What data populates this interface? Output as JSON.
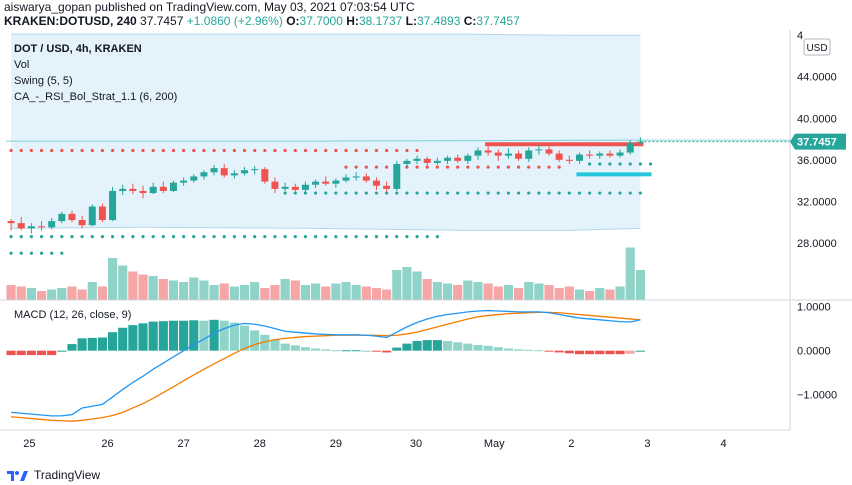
{
  "header": {
    "line1": "aiswarya_gopan published on TradingView.com, May 03, 2021 07:03:54 UTC",
    "symbol": "KRAKEN:DOTUSD, 240",
    "last": "37.7457",
    "change": "+1.0860 (+2.96%)",
    "open_label": "O:",
    "open": "37.7000",
    "high_label": "H:",
    "high": "38.1737",
    "low_label": "L:",
    "low": "37.4893",
    "close_label": "C:",
    "close": "37.7457"
  },
  "legend": {
    "title": "DOT / USD, 4h, KRAKEN",
    "vol": "Vol",
    "swing": "Swing (5, 5)",
    "strategy": "CA_-_RSI_Bol_Strat_1.1 (6, 200)",
    "macd": "MACD (12, 26, close, 9)"
  },
  "footer": {
    "brand": "TradingView"
  },
  "colors": {
    "up": "#26a69a",
    "down": "#ef5350",
    "up_light": "#8fd3c9",
    "down_light": "#f6a6a6",
    "macd_line": "#2196f3",
    "signal_line": "#f57c00",
    "band_fill": "#e3f2fb",
    "swing_high": "#ef5350",
    "swing_low": "#26a69a",
    "price_label": "#26a69a"
  },
  "chart_data": {
    "type": "candlestick",
    "currency_badge": "USD",
    "x_ticks": [
      "25",
      "26",
      "27",
      "28",
      "29",
      "30",
      "May",
      "2",
      "3",
      "4"
    ],
    "y_ticks": [
      "28.0000",
      "32.0000",
      "36.0000",
      "40.0000",
      "44.0000",
      "4"
    ],
    "price_label": "37.7457",
    "macd_ticks": [
      "1.0000",
      "0.0000",
      "−1.0000"
    ],
    "ylim": [
      22.5,
      48.5
    ],
    "macd_ylim": [
      -1.8,
      1.15
    ],
    "candles": [
      {
        "o": 30.1,
        "h": 30.3,
        "l": 29.2,
        "c": 29.9
      },
      {
        "o": 29.9,
        "h": 30.5,
        "l": 29.2,
        "c": 29.4
      },
      {
        "o": 29.4,
        "h": 29.9,
        "l": 28.9,
        "c": 29.6
      },
      {
        "o": 29.6,
        "h": 30.1,
        "l": 29.2,
        "c": 29.5
      },
      {
        "o": 29.5,
        "h": 30.4,
        "l": 29.3,
        "c": 30.1
      },
      {
        "o": 30.1,
        "h": 31.0,
        "l": 29.9,
        "c": 30.8
      },
      {
        "o": 30.8,
        "h": 31.1,
        "l": 30.0,
        "c": 30.2
      },
      {
        "o": 30.2,
        "h": 30.6,
        "l": 29.4,
        "c": 29.7
      },
      {
        "o": 29.7,
        "h": 31.7,
        "l": 29.6,
        "c": 31.5
      },
      {
        "o": 31.5,
        "h": 31.8,
        "l": 30.0,
        "c": 30.2
      },
      {
        "o": 30.2,
        "h": 33.4,
        "l": 30.1,
        "c": 33.0
      },
      {
        "o": 33.0,
        "h": 33.6,
        "l": 32.6,
        "c": 33.2
      },
      {
        "o": 33.2,
        "h": 33.7,
        "l": 32.7,
        "c": 33.0
      },
      {
        "o": 33.0,
        "h": 33.5,
        "l": 32.3,
        "c": 32.8
      },
      {
        "o": 32.8,
        "h": 33.8,
        "l": 32.7,
        "c": 33.4
      },
      {
        "o": 33.4,
        "h": 33.9,
        "l": 32.8,
        "c": 33.0
      },
      {
        "o": 33.0,
        "h": 34.0,
        "l": 32.9,
        "c": 33.8
      },
      {
        "o": 33.8,
        "h": 34.3,
        "l": 33.5,
        "c": 34.0
      },
      {
        "o": 34.0,
        "h": 34.6,
        "l": 33.8,
        "c": 34.4
      },
      {
        "o": 34.4,
        "h": 35.0,
        "l": 34.1,
        "c": 34.8
      },
      {
        "o": 34.8,
        "h": 35.5,
        "l": 34.5,
        "c": 35.2
      },
      {
        "o": 35.2,
        "h": 35.6,
        "l": 34.3,
        "c": 34.5
      },
      {
        "o": 34.5,
        "h": 35.0,
        "l": 34.2,
        "c": 34.7
      },
      {
        "o": 34.7,
        "h": 35.3,
        "l": 34.5,
        "c": 35.0
      },
      {
        "o": 35.0,
        "h": 35.4,
        "l": 34.6,
        "c": 35.1
      },
      {
        "o": 35.1,
        "h": 35.3,
        "l": 33.7,
        "c": 33.9
      },
      {
        "o": 33.9,
        "h": 34.3,
        "l": 32.8,
        "c": 33.2
      },
      {
        "o": 33.2,
        "h": 33.8,
        "l": 33.0,
        "c": 33.4
      },
      {
        "o": 33.4,
        "h": 33.7,
        "l": 32.9,
        "c": 33.1
      },
      {
        "o": 33.1,
        "h": 33.9,
        "l": 32.7,
        "c": 33.6
      },
      {
        "o": 33.6,
        "h": 34.1,
        "l": 33.3,
        "c": 33.9
      },
      {
        "o": 33.9,
        "h": 34.4,
        "l": 33.5,
        "c": 33.7
      },
      {
        "o": 33.7,
        "h": 34.2,
        "l": 33.3,
        "c": 34.0
      },
      {
        "o": 34.0,
        "h": 34.6,
        "l": 33.8,
        "c": 34.3
      },
      {
        "o": 34.3,
        "h": 34.8,
        "l": 34.0,
        "c": 34.4
      },
      {
        "o": 34.4,
        "h": 34.7,
        "l": 33.8,
        "c": 34.0
      },
      {
        "o": 34.0,
        "h": 34.3,
        "l": 33.1,
        "c": 33.5
      },
      {
        "o": 33.5,
        "h": 33.9,
        "l": 32.9,
        "c": 33.2
      },
      {
        "o": 33.2,
        "h": 35.9,
        "l": 33.0,
        "c": 35.6
      },
      {
        "o": 35.6,
        "h": 36.1,
        "l": 35.3,
        "c": 35.9
      },
      {
        "o": 35.9,
        "h": 36.4,
        "l": 35.6,
        "c": 36.1
      },
      {
        "o": 36.1,
        "h": 36.3,
        "l": 35.4,
        "c": 35.7
      },
      {
        "o": 35.7,
        "h": 36.2,
        "l": 35.5,
        "c": 35.9
      },
      {
        "o": 35.9,
        "h": 36.4,
        "l": 35.6,
        "c": 36.2
      },
      {
        "o": 36.2,
        "h": 36.5,
        "l": 35.7,
        "c": 35.9
      },
      {
        "o": 35.9,
        "h": 36.6,
        "l": 35.6,
        "c": 36.4
      },
      {
        "o": 36.4,
        "h": 37.2,
        "l": 36.0,
        "c": 36.9
      },
      {
        "o": 36.9,
        "h": 37.3,
        "l": 36.4,
        "c": 36.7
      },
      {
        "o": 36.7,
        "h": 37.0,
        "l": 35.9,
        "c": 36.4
      },
      {
        "o": 36.4,
        "h": 37.1,
        "l": 36.1,
        "c": 36.6
      },
      {
        "o": 36.6,
        "h": 36.9,
        "l": 35.9,
        "c": 36.1
      },
      {
        "o": 36.1,
        "h": 37.2,
        "l": 35.8,
        "c": 36.9
      },
      {
        "o": 36.9,
        "h": 37.4,
        "l": 36.5,
        "c": 37.0
      },
      {
        "o": 37.0,
        "h": 37.3,
        "l": 36.4,
        "c": 36.6
      },
      {
        "o": 36.6,
        "h": 36.9,
        "l": 35.8,
        "c": 36.0
      },
      {
        "o": 36.0,
        "h": 36.4,
        "l": 35.6,
        "c": 35.9
      },
      {
        "o": 35.9,
        "h": 36.7,
        "l": 35.6,
        "c": 36.5
      },
      {
        "o": 36.5,
        "h": 36.9,
        "l": 36.1,
        "c": 36.4
      },
      {
        "o": 36.4,
        "h": 36.8,
        "l": 36.1,
        "c": 36.6
      },
      {
        "o": 36.6,
        "h": 36.9,
        "l": 36.2,
        "c": 36.4
      },
      {
        "o": 36.4,
        "h": 37.0,
        "l": 36.2,
        "c": 36.7
      },
      {
        "o": 36.7,
        "h": 37.9,
        "l": 36.5,
        "c": 37.6
      },
      {
        "o": 37.7,
        "h": 38.17,
        "l": 37.49,
        "c": 37.75
      }
    ],
    "volume": [
      10,
      9,
      8,
      6,
      7,
      8,
      9,
      7,
      12,
      9,
      28,
      23,
      19,
      17,
      16,
      14,
      13,
      12,
      15,
      13,
      10,
      11,
      9,
      10,
      12,
      8,
      10,
      14,
      13,
      10,
      11,
      9,
      11,
      12,
      10,
      9,
      8,
      7,
      20,
      22,
      19,
      14,
      12,
      11,
      10,
      13,
      12,
      11,
      9,
      10,
      8,
      12,
      11,
      10,
      8,
      9,
      7,
      6,
      8,
      7,
      9,
      35,
      20
    ],
    "volume_scale_max": 40,
    "bollinger": {
      "upper": [
        [
          0,
          48.1
        ],
        [
          13,
          48.1
        ],
        [
          30,
          48.1
        ],
        [
          45,
          48.1
        ],
        [
          55,
          48.0
        ],
        [
          62,
          48.0
        ]
      ],
      "lower": [
        [
          0,
          29.4
        ],
        [
          13,
          29.5
        ],
        [
          30,
          29.4
        ],
        [
          45,
          29.2
        ],
        [
          55,
          29.2
        ],
        [
          62,
          29.4
        ]
      ],
      "middle": [
        [
          0,
          37.8
        ],
        [
          30,
          37.8
        ],
        [
          62,
          37.9
        ]
      ]
    },
    "swing_highs": [
      {
        "value": 36.9,
        "from": 0,
        "to": 40
      },
      {
        "value": 35.3,
        "from": 33,
        "to": 54
      },
      {
        "value": 37.5,
        "from": 47,
        "to": 62
      }
    ],
    "swing_lows": [
      {
        "value": 28.6,
        "from": 0,
        "to": 42
      },
      {
        "value": 27.0,
        "from": 0,
        "to": 5
      },
      {
        "value": 32.8,
        "from": 27,
        "to": 62
      },
      {
        "value": 35.6,
        "from": 57,
        "to": 63
      }
    ],
    "macd": [
      -1.4,
      -1.42,
      -1.44,
      -1.46,
      -1.48,
      -1.48,
      -1.45,
      -1.3,
      -1.26,
      -1.22,
      -1.05,
      -0.88,
      -0.72,
      -0.58,
      -0.42,
      -0.28,
      -0.14,
      0.0,
      0.14,
      0.26,
      0.4,
      0.5,
      0.58,
      0.62,
      0.6,
      0.56,
      0.5,
      0.44,
      0.42,
      0.4,
      0.38,
      0.37,
      0.36,
      0.36,
      0.36,
      0.35,
      0.33,
      0.3,
      0.42,
      0.54,
      0.64,
      0.72,
      0.78,
      0.82,
      0.85,
      0.88,
      0.9,
      0.91,
      0.9,
      0.89,
      0.88,
      0.88,
      0.88,
      0.86,
      0.82,
      0.78,
      0.74,
      0.72,
      0.7,
      0.68,
      0.66,
      0.65,
      0.7
    ],
    "signal": [
      -1.5,
      -1.52,
      -1.54,
      -1.56,
      -1.58,
      -1.59,
      -1.6,
      -1.58,
      -1.55,
      -1.52,
      -1.47,
      -1.4,
      -1.3,
      -1.2,
      -1.08,
      -0.95,
      -0.82,
      -0.68,
      -0.55,
      -0.42,
      -0.3,
      -0.18,
      -0.06,
      0.05,
      0.14,
      0.2,
      0.25,
      0.28,
      0.3,
      0.32,
      0.33,
      0.34,
      0.35,
      0.35,
      0.35,
      0.35,
      0.35,
      0.34,
      0.35,
      0.38,
      0.42,
      0.48,
      0.54,
      0.6,
      0.66,
      0.72,
      0.77,
      0.8,
      0.82,
      0.84,
      0.85,
      0.86,
      0.87,
      0.87,
      0.86,
      0.84,
      0.82,
      0.8,
      0.78,
      0.76,
      0.74,
      0.72,
      0.7
    ],
    "histogram": [
      -0.1,
      -0.1,
      -0.1,
      -0.1,
      -0.1,
      0.0,
      0.15,
      0.28,
      0.29,
      0.3,
      0.42,
      0.52,
      0.58,
      0.62,
      0.66,
      0.67,
      0.68,
      0.68,
      0.69,
      0.68,
      0.7,
      0.68,
      0.64,
      0.57,
      0.46,
      0.36,
      0.25,
      0.16,
      0.12,
      0.08,
      0.05,
      0.03,
      0.01,
      0.01,
      0.01,
      0.0,
      -0.02,
      -0.04,
      0.07,
      0.16,
      0.22,
      0.24,
      0.24,
      0.22,
      0.19,
      0.16,
      0.13,
      0.11,
      0.08,
      0.05,
      0.03,
      0.02,
      0.01,
      -0.01,
      -0.04,
      -0.06,
      -0.08,
      -0.08,
      -0.08,
      -0.08,
      -0.08,
      -0.07,
      0.0
    ]
  }
}
